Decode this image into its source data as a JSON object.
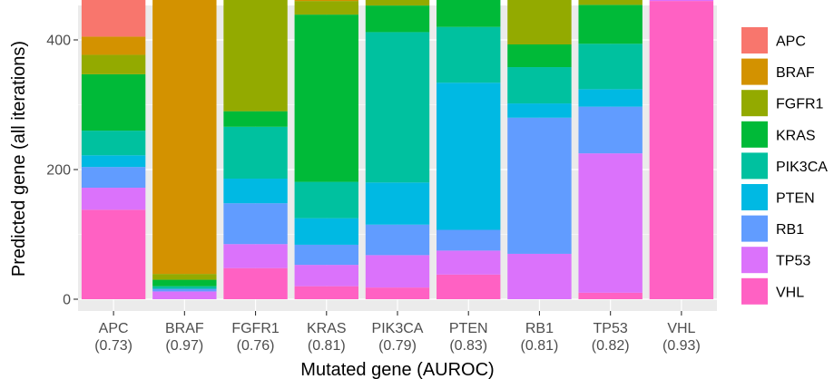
{
  "chart_data": {
    "type": "bar",
    "stacked": true,
    "xlabel": "Mutated gene (AUROC)",
    "ylabel": "Predicted gene (all iterations)",
    "ylim": [
      0,
      560
    ],
    "yticks": [
      0,
      200,
      400
    ],
    "grid": true,
    "legend_position": "right",
    "categories": [
      "APC",
      "BRAF",
      "FGFR1",
      "KRAS",
      "PIK3CA",
      "PTEN",
      "RB1",
      "TP53",
      "VHL"
    ],
    "auroc": [
      "(0.73)",
      "(0.97)",
      "(0.76)",
      "(0.81)",
      "(0.79)",
      "(0.83)",
      "(0.81)",
      "(0.82)",
      "(0.93)"
    ],
    "series": [
      {
        "name": "VHL",
        "color": "#FF61C3",
        "values": [
          138,
          0,
          48,
          20,
          18,
          38,
          0,
          10,
          460
        ]
      },
      {
        "name": "TP53",
        "color": "#DB72FB",
        "values": [
          34,
          12,
          37,
          33,
          50,
          37,
          70,
          215,
          4
        ]
      },
      {
        "name": "RB1",
        "color": "#619CFF",
        "values": [
          32,
          4,
          63,
          31,
          47,
          32,
          210,
          72,
          8
        ]
      },
      {
        "name": "PTEN",
        "color": "#00B9E3",
        "values": [
          18,
          0,
          38,
          41,
          65,
          227,
          22,
          27,
          11
        ]
      },
      {
        "name": "PIK3CA",
        "color": "#00C19F",
        "values": [
          38,
          4,
          80,
          56,
          232,
          86,
          56,
          70,
          4
        ]
      },
      {
        "name": "KRAS",
        "color": "#00BA38",
        "values": [
          87,
          10,
          24,
          258,
          41,
          57,
          35,
          60,
          12
        ]
      },
      {
        "name": "FGFR1",
        "color": "#93AA00",
        "values": [
          30,
          9,
          214,
          21,
          72,
          33,
          70,
          38,
          13
        ]
      },
      {
        "name": "BRAF",
        "color": "#D39200",
        "values": [
          28,
          473,
          5,
          33,
          4,
          16,
          50,
          18,
          16
        ]
      },
      {
        "name": "APC",
        "color": "#F8766D",
        "values": [
          135,
          8,
          31,
          47,
          11,
          14,
          27,
          30,
          12
        ]
      }
    ],
    "legend_order": [
      "APC",
      "BRAF",
      "FGFR1",
      "KRAS",
      "PIK3CA",
      "PTEN",
      "RB1",
      "TP53",
      "VHL"
    ],
    "panel_background": "#EBEBEB",
    "grid_color": "#FFFFFF"
  }
}
